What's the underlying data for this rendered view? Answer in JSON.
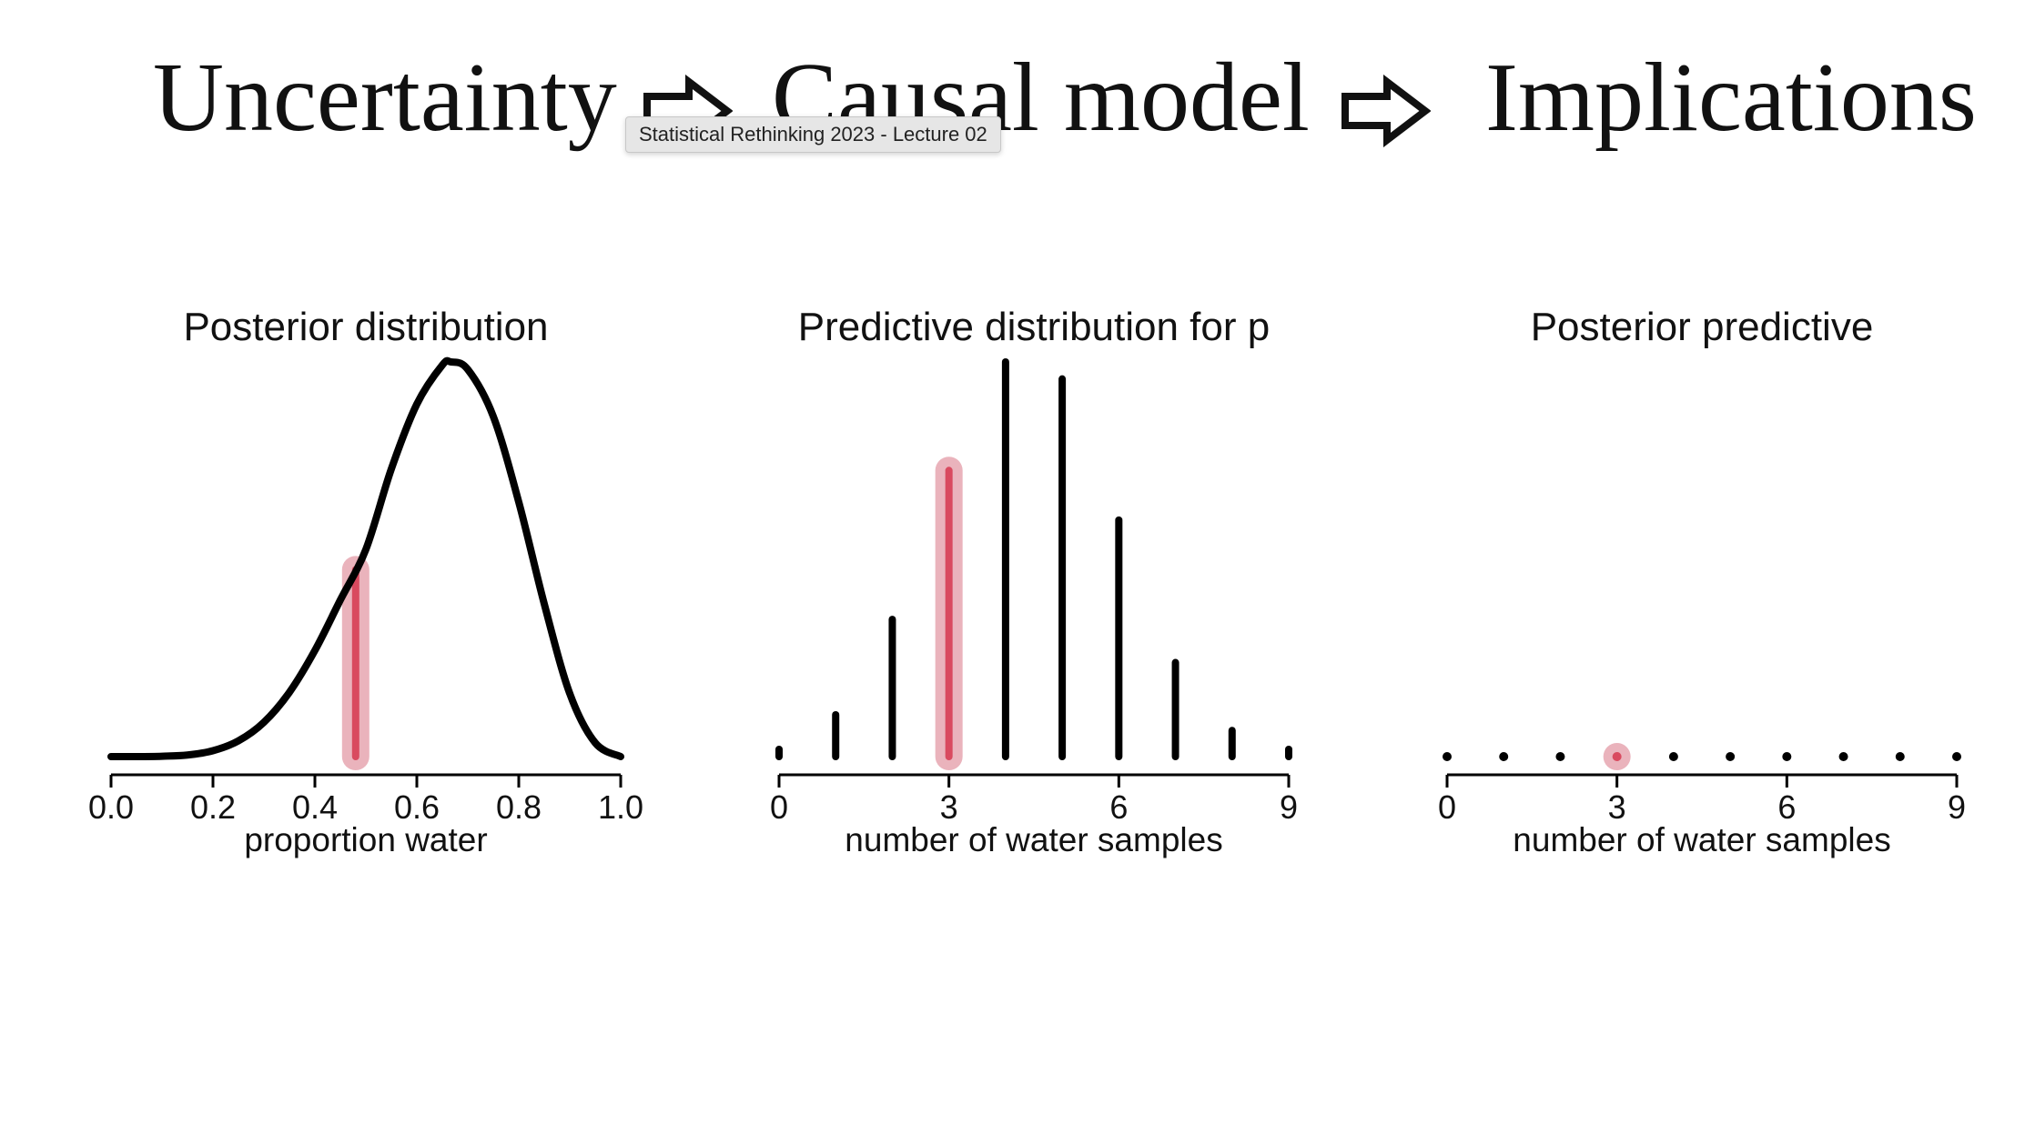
{
  "header": {
    "words": [
      "Uncertainty",
      "Causal model",
      "Implications"
    ],
    "arrow_icon": "outline-right-arrow-icon"
  },
  "tooltip": {
    "text": "Statistical Rethinking 2023 - Lecture 02"
  },
  "colors": {
    "ink": "#000000",
    "highlight": "#d94a5f",
    "highlight_halo": "#eab3bc"
  },
  "chart_data": [
    {
      "type": "line",
      "title": "Posterior distribution",
      "xlabel": "proportion water",
      "ylabel": "",
      "xlim": [
        0,
        1
      ],
      "xticks": [
        "0.0",
        "0.2",
        "0.4",
        "0.6",
        "0.8",
        "1.0"
      ],
      "x": [
        0.0,
        0.05,
        0.1,
        0.15,
        0.2,
        0.25,
        0.3,
        0.35,
        0.4,
        0.45,
        0.5,
        0.55,
        0.6,
        0.65,
        0.667,
        0.7,
        0.75,
        0.8,
        0.85,
        0.9,
        0.95,
        1.0
      ],
      "y": [
        0.0,
        0.0,
        0.001,
        0.004,
        0.015,
        0.04,
        0.087,
        0.163,
        0.269,
        0.397,
        0.525,
        0.729,
        0.893,
        0.992,
        1.0,
        0.981,
        0.862,
        0.645,
        0.387,
        0.16,
        0.035,
        0.0
      ],
      "highlight": {
        "x": 0.48,
        "label": ""
      },
      "grid": false
    },
    {
      "type": "bar",
      "title": "Predictive distribution for p",
      "xlabel": "number of water samples",
      "ylabel": "",
      "xlim": [
        0,
        9
      ],
      "xticks": [
        "0",
        "3",
        "6",
        "9"
      ],
      "categories": [
        "0",
        "1",
        "2",
        "3",
        "4",
        "5",
        "6",
        "7",
        "8",
        "9"
      ],
      "values": [
        0.003,
        0.032,
        0.105,
        0.219,
        0.302,
        0.289,
        0.181,
        0.072,
        0.02,
        0.003
      ],
      "highlight_index": 3,
      "grid": false
    },
    {
      "type": "scatter",
      "title": "Posterior predictive",
      "xlabel": "number of water samples",
      "ylabel": "",
      "xlim": [
        0,
        9
      ],
      "xticks": [
        "0",
        "3",
        "6",
        "9"
      ],
      "x": [
        0,
        1,
        2,
        3,
        4,
        5,
        6,
        7,
        8,
        9
      ],
      "y": [
        0,
        0,
        0,
        0,
        0,
        0,
        0,
        0,
        0,
        0
      ],
      "highlight_index": 3,
      "grid": false
    }
  ]
}
